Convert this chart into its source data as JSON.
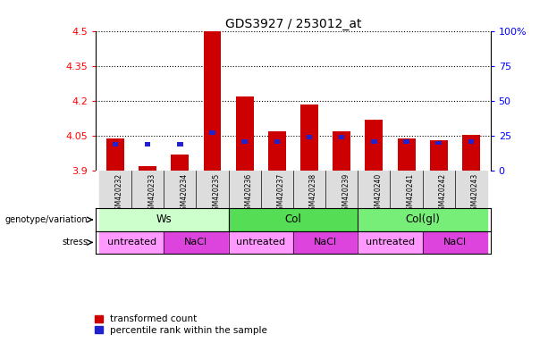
{
  "title": "GDS3927 / 253012_at",
  "samples": [
    "GSM420232",
    "GSM420233",
    "GSM420234",
    "GSM420235",
    "GSM420236",
    "GSM420237",
    "GSM420238",
    "GSM420239",
    "GSM420240",
    "GSM420241",
    "GSM420242",
    "GSM420243"
  ],
  "transformed_count": [
    4.04,
    3.92,
    3.97,
    4.5,
    4.22,
    4.07,
    4.185,
    4.07,
    4.12,
    4.04,
    4.03,
    4.055
  ],
  "percentile_rank_y": [
    4.015,
    4.015,
    4.015,
    4.065,
    4.025,
    4.025,
    4.045,
    4.045,
    4.025,
    4.025,
    4.02,
    4.025
  ],
  "ylim_left": [
    3.9,
    4.5
  ],
  "ylim_right": [
    0,
    100
  ],
  "yticks_left": [
    3.9,
    4.05,
    4.2,
    4.35,
    4.5
  ],
  "ytick_labels_left": [
    "3.9",
    "4.05",
    "4.2",
    "4.35",
    "4.5"
  ],
  "yticks_right": [
    0,
    25,
    50,
    75,
    100
  ],
  "ytick_labels_right": [
    "0",
    "25",
    "50",
    "75",
    "100%"
  ],
  "bar_bottom": 3.9,
  "bar_color": "#cc0000",
  "percentile_color": "#2222cc",
  "genotype_groups": [
    {
      "label": "Ws",
      "start": 0,
      "end": 4,
      "color": "#ccffcc"
    },
    {
      "label": "Col",
      "start": 4,
      "end": 8,
      "color": "#55dd55"
    },
    {
      "label": "Col(gl)",
      "start": 8,
      "end": 12,
      "color": "#77ee77"
    }
  ],
  "stress_groups": [
    {
      "label": "untreated",
      "start": 0,
      "end": 2,
      "color": "#ff99ff"
    },
    {
      "label": "NaCl",
      "start": 2,
      "end": 4,
      "color": "#dd44dd"
    },
    {
      "label": "untreated",
      "start": 4,
      "end": 6,
      "color": "#ff99ff"
    },
    {
      "label": "NaCl",
      "start": 6,
      "end": 8,
      "color": "#dd44dd"
    },
    {
      "label": "untreated",
      "start": 8,
      "end": 10,
      "color": "#ff99ff"
    },
    {
      "label": "NaCl",
      "start": 10,
      "end": 12,
      "color": "#dd44dd"
    }
  ],
  "legend_red_label": "transformed count",
  "legend_blue_label": "percentile rank within the sample",
  "genotype_label": "genotype/variation",
  "stress_label": "stress",
  "bar_width": 0.55,
  "col_bg_color": "#dddddd",
  "col_bg_color2": "#ffffff"
}
